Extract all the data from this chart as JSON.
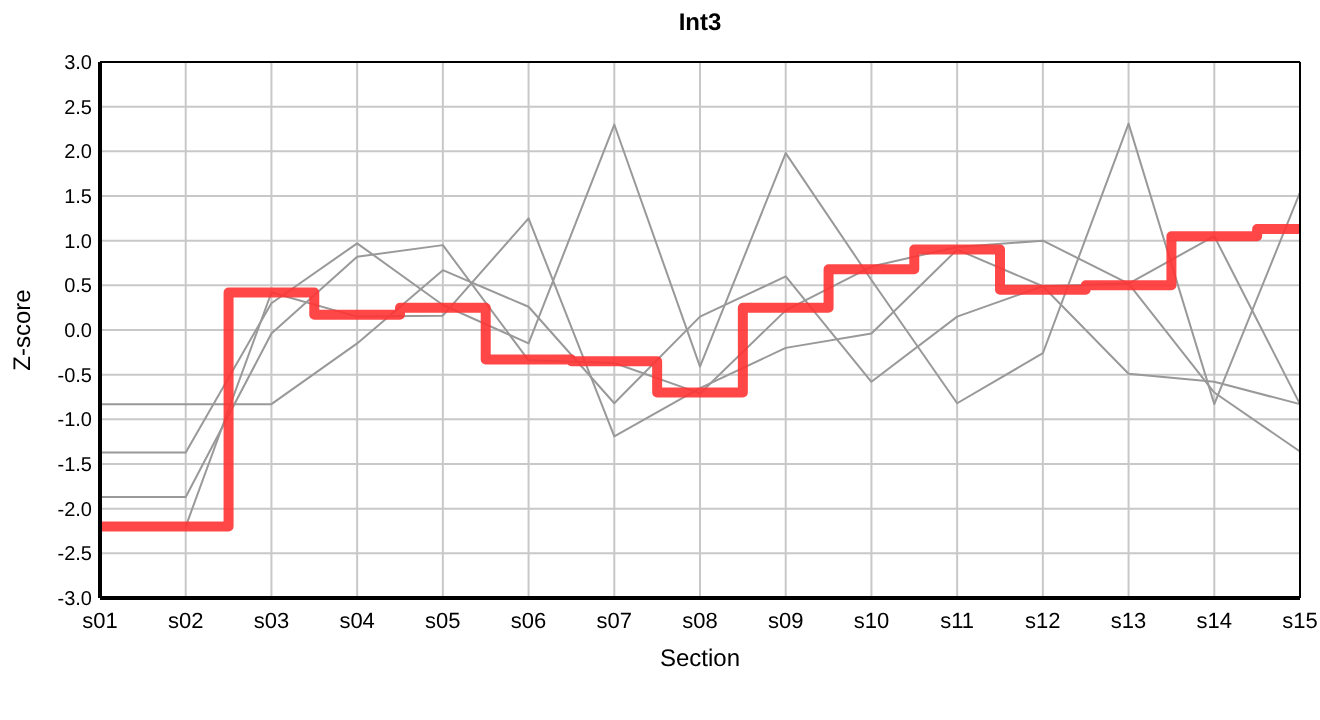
{
  "chart_data": {
    "type": "line",
    "title": "Int3",
    "xlabel": "Section",
    "ylabel": "Z-score",
    "categories": [
      "s01",
      "s02",
      "s03",
      "s04",
      "s05",
      "s06",
      "s07",
      "s08",
      "s09",
      "s10",
      "s11",
      "s12",
      "s13",
      "s14",
      "s15"
    ],
    "series": [
      {
        "color": "#999999",
        "values": [
          -0.83,
          -0.83,
          -0.83,
          -0.15,
          0.67,
          0.26,
          -0.82,
          0.15,
          0.6,
          -0.58,
          0.15,
          0.49,
          -0.49,
          -0.58,
          -0.83
        ]
      },
      {
        "color": "#999999",
        "values": [
          -1.37,
          -1.37,
          0.3,
          0.97,
          0.28,
          -0.15,
          2.3,
          -0.41,
          1.98,
          0.56,
          -0.82,
          -0.26,
          2.31,
          -0.83,
          1.54
        ]
      },
      {
        "color": "#999999",
        "values": [
          -1.87,
          -1.87,
          -0.04,
          0.82,
          0.95,
          -0.34,
          -0.37,
          -0.71,
          0.22,
          0.71,
          0.93,
          1.0,
          0.52,
          -0.7,
          -1.36
        ]
      },
      {
        "color": "#999999",
        "values": [
          null,
          -2.2,
          0.42,
          0.15,
          0.16,
          1.25,
          -1.19,
          -0.65,
          -0.2,
          -0.04,
          0.9,
          0.49,
          0.52,
          1.05,
          -0.83
        ]
      },
      {
        "type": "step",
        "color": "#ff3333",
        "values": [
          -2.2,
          -2.2,
          0.42,
          0.17,
          0.25,
          -0.33,
          -0.35,
          -0.7,
          0.25,
          0.68,
          0.9,
          0.45,
          0.5,
          1.05,
          1.13
        ]
      }
    ],
    "ylim": [
      -3,
      3
    ],
    "yticks": [
      {
        "value": -3,
        "label": "-3.0"
      },
      {
        "value": -2.5,
        "label": "-2.5"
      },
      {
        "value": -2,
        "label": "-2.0"
      },
      {
        "value": -1.5,
        "label": "-1.5"
      },
      {
        "value": -1,
        "label": "-1.0"
      },
      {
        "value": -0.5,
        "label": "-0.5"
      },
      {
        "value": 0,
        "label": "0.0"
      },
      {
        "value": 0.5,
        "label": "0.5"
      },
      {
        "value": 1,
        "label": "1.0"
      },
      {
        "value": 1.5,
        "label": "1.5"
      },
      {
        "value": 2,
        "label": "2.0"
      },
      {
        "value": 2.5,
        "label": "2.5"
      },
      {
        "value": 3,
        "label": "3.0"
      }
    ],
    "grid": true,
    "marker": "none"
  }
}
